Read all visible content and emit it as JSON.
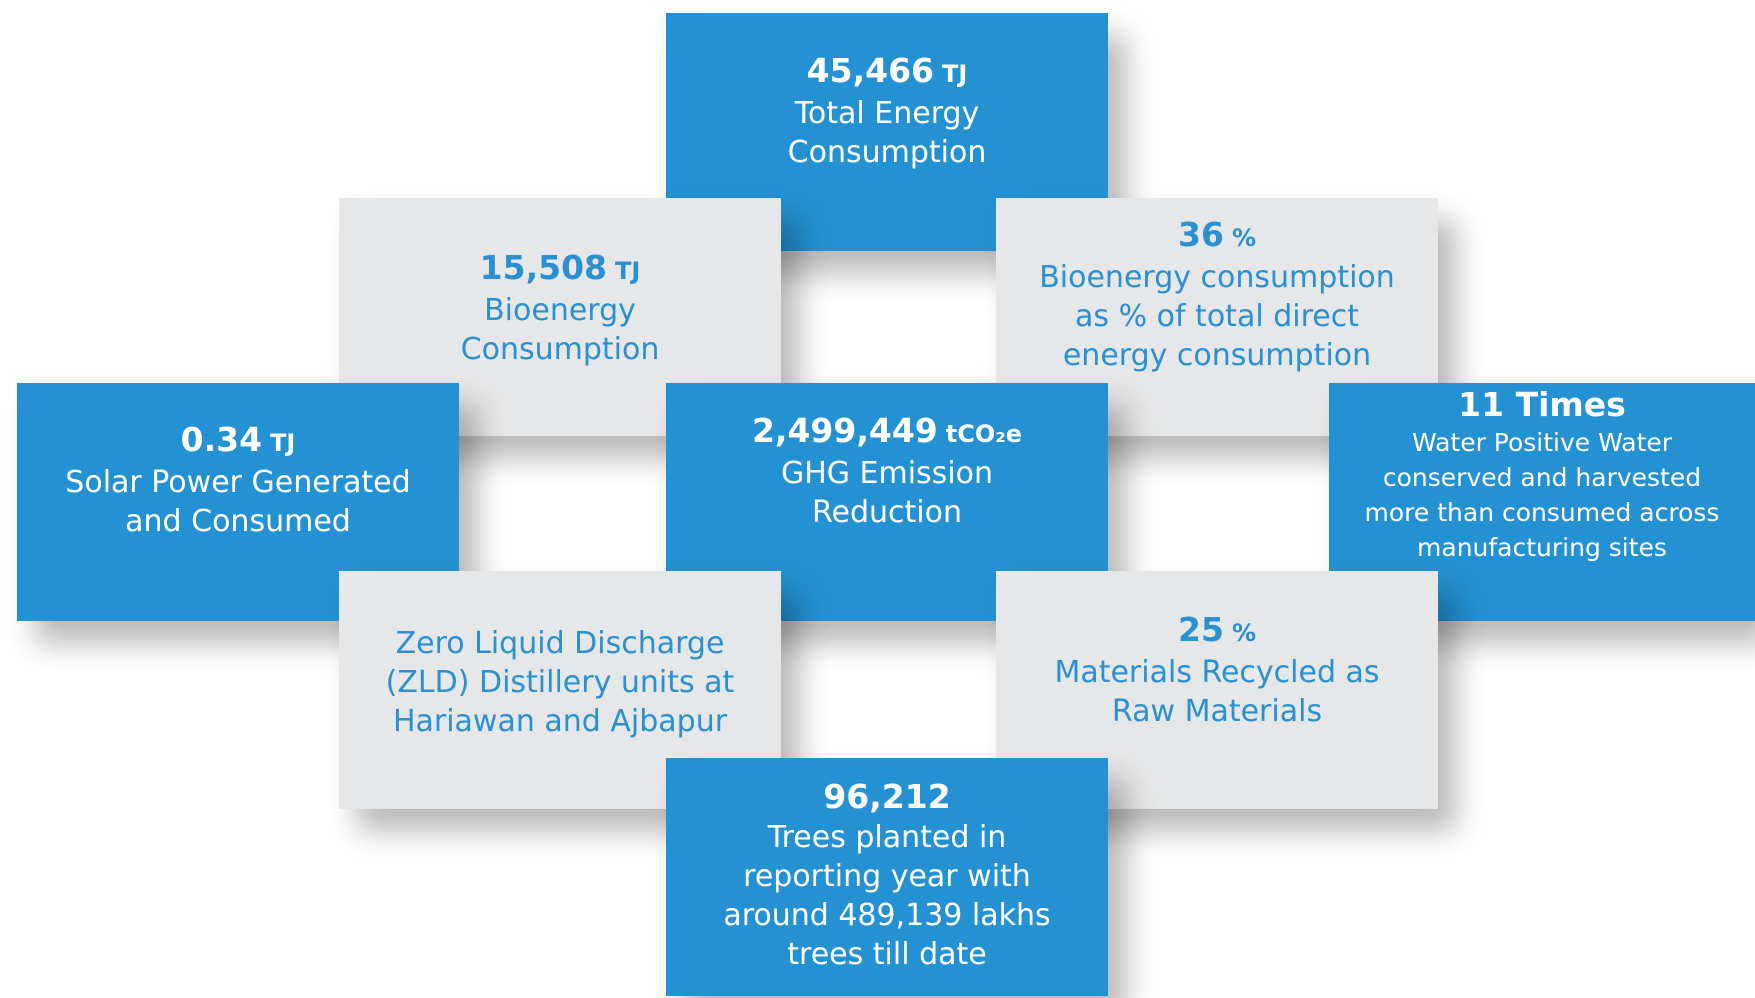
{
  "cards": [
    {
      "value": "45,466",
      "unit": "TJ",
      "label": [
        "Total Energy",
        "Consumption"
      ]
    },
    {
      "value": "15,508",
      "unit": "TJ",
      "label": [
        "Bioenergy",
        "Consumption"
      ]
    },
    {
      "value": "36",
      "unit": "%",
      "label": [
        "Bioenergy consumption",
        "as % of total direct",
        "energy consumption"
      ]
    },
    {
      "value": "0.34",
      "unit": "TJ",
      "label": [
        "Solar Power Generated",
        "and Consumed"
      ]
    },
    {
      "value": "2,499,449",
      "unit": "tCO₂e",
      "label": [
        "GHG Emission",
        "Reduction"
      ]
    },
    {
      "value": "11 Times",
      "label": [
        "Water Positive Water",
        "conserved and harvested",
        "more than consumed across",
        "manufacturing sites"
      ]
    },
    {
      "label": [
        "Zero Liquid Discharge",
        "(ZLD) Distillery units at",
        "Hariawan and Ajbapur"
      ]
    },
    {
      "value": "25",
      "unit": "%",
      "label": [
        "Materials Recycled as",
        "Raw Materials"
      ]
    },
    {
      "value": "96,212",
      "label": [
        "Trees planted in",
        "reporting year with",
        "around 489,139 lakhs",
        "trees till date"
      ]
    }
  ]
}
